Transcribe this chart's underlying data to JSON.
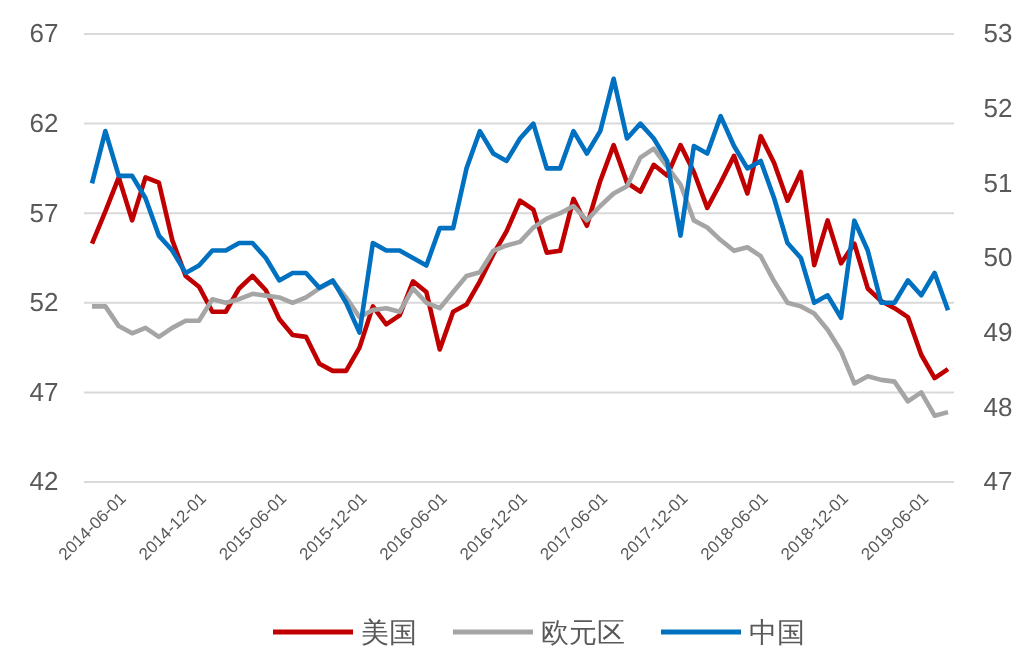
{
  "chart_data": {
    "type": "line",
    "categories": [
      "2014-06-01",
      null,
      null,
      null,
      null,
      null,
      "2014-12-01",
      null,
      null,
      null,
      null,
      null,
      "2015-06-01",
      null,
      null,
      null,
      null,
      null,
      "2015-12-01",
      null,
      null,
      null,
      null,
      null,
      "2016-06-01",
      null,
      null,
      null,
      null,
      null,
      "2016-12-01",
      null,
      null,
      null,
      null,
      null,
      "2017-06-01",
      null,
      null,
      null,
      null,
      null,
      "2017-12-01",
      null,
      null,
      null,
      null,
      null,
      "2018-06-01",
      null,
      null,
      null,
      null,
      null,
      "2018-12-01",
      null,
      null,
      null,
      null,
      null,
      "2019-06-01",
      null,
      null,
      null,
      null
    ],
    "series": [
      {
        "name": "美国",
        "color": "#c00000",
        "values": [
          55.3,
          57.1,
          59.0,
          56.6,
          59.0,
          58.7,
          55.5,
          53.5,
          52.9,
          51.5,
          51.5,
          52.8,
          53.5,
          52.7,
          51.1,
          50.2,
          50.1,
          48.6,
          48.2,
          48.2,
          49.5,
          51.8,
          50.8,
          51.3,
          53.2,
          52.6,
          49.4,
          51.5,
          51.9,
          53.2,
          54.7,
          56.0,
          57.7,
          57.2,
          54.8,
          54.9,
          57.8,
          56.3,
          58.8,
          60.8,
          58.7,
          58.2,
          59.7,
          59.1,
          60.8,
          59.3,
          57.3,
          58.7,
          60.2,
          58.1,
          61.3,
          59.8,
          57.7,
          59.3,
          54.1,
          56.6,
          54.2,
          55.3,
          52.8,
          52.1,
          51.7,
          51.2,
          49.1,
          47.8,
          48.3
        ]
      },
      {
        "name": "欧元区",
        "color": "#a5a5a5",
        "values": [
          51.8,
          51.8,
          50.7,
          50.3,
          50.6,
          50.1,
          50.6,
          51.0,
          51.0,
          52.2,
          52.0,
          52.2,
          52.5,
          52.4,
          52.3,
          52.0,
          52.3,
          52.8,
          53.2,
          52.3,
          51.2,
          51.6,
          51.7,
          51.5,
          52.8,
          52.0,
          51.7,
          52.6,
          53.5,
          53.7,
          54.9,
          55.2,
          55.4,
          56.2,
          56.7,
          57.0,
          57.4,
          56.6,
          57.4,
          58.1,
          58.5,
          60.1,
          60.6,
          59.6,
          58.6,
          56.6,
          56.2,
          55.5,
          54.9,
          55.1,
          54.6,
          53.2,
          52.0,
          51.8,
          51.4,
          50.5,
          49.3,
          47.5,
          47.9,
          47.7,
          47.6,
          46.5,
          47.0,
          45.7,
          45.9
        ]
      },
      {
        "name": "中国",
        "color": "#0070c0",
        "axis": "y2",
        "values": [
          51.0,
          51.7,
          51.1,
          51.1,
          50.8,
          50.3,
          50.1,
          49.8,
          49.9,
          50.1,
          50.1,
          50.2,
          50.2,
          50.0,
          49.7,
          49.8,
          49.8,
          49.6,
          49.7,
          49.4,
          49.0,
          50.2,
          50.1,
          50.1,
          50.0,
          49.9,
          50.4,
          50.4,
          51.2,
          51.7,
          51.4,
          51.3,
          51.6,
          51.8,
          51.2,
          51.2,
          51.7,
          51.4,
          51.7,
          52.4,
          51.6,
          51.8,
          51.6,
          51.3,
          50.3,
          51.5,
          51.4,
          51.9,
          51.5,
          51.2,
          51.3,
          50.8,
          50.2,
          50.0,
          49.4,
          49.5,
          49.2,
          50.5,
          50.1,
          49.4,
          49.4,
          49.7,
          49.5,
          49.8,
          49.3
        ]
      }
    ],
    "ylim": [
      42,
      67
    ],
    "yticks": [
      42,
      47,
      52,
      57,
      62,
      67
    ],
    "y2lim": [
      47,
      53
    ],
    "y2ticks": [
      47,
      48,
      49,
      50,
      51,
      52,
      53
    ],
    "grid": "y",
    "legend": "bottom",
    "line_style": "solid",
    "marker": "none"
  }
}
